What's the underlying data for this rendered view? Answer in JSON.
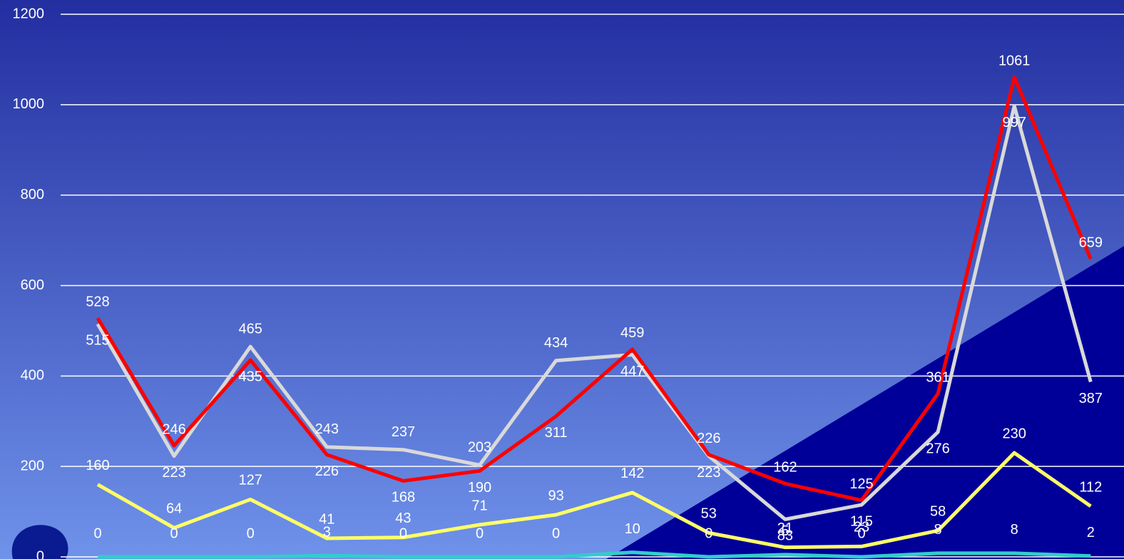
{
  "chart_data": {
    "type": "line",
    "categories": [
      null,
      null,
      null,
      null,
      null,
      null,
      null,
      null,
      null,
      null,
      null,
      null,
      null,
      null
    ],
    "series": [
      {
        "name": null,
        "color": "#ff0000",
        "values": [
          528,
          246,
          435,
          226,
          168,
          190,
          311,
          459,
          226,
          162,
          125,
          361,
          1061,
          659
        ]
      },
      {
        "name": null,
        "color": "#d9d9d9",
        "values": [
          515,
          223,
          465,
          243,
          237,
          203,
          434,
          447,
          223,
          83,
          115,
          276,
          997,
          387
        ]
      },
      {
        "name": null,
        "color": "#ffff66",
        "values": [
          160,
          64,
          127,
          41,
          43,
          71,
          93,
          142,
          53,
          21,
          23,
          58,
          230,
          112
        ]
      },
      {
        "name": null,
        "color": "#33cccc",
        "values": [
          0,
          0,
          0,
          3,
          0,
          0,
          0,
          10,
          0,
          5,
          0,
          8,
          8,
          2
        ]
      }
    ],
    "ylim": [
      0,
      1200
    ],
    "yticks": [
      0,
      200,
      400,
      600,
      800,
      1000,
      1200
    ],
    "grid": true
  }
}
